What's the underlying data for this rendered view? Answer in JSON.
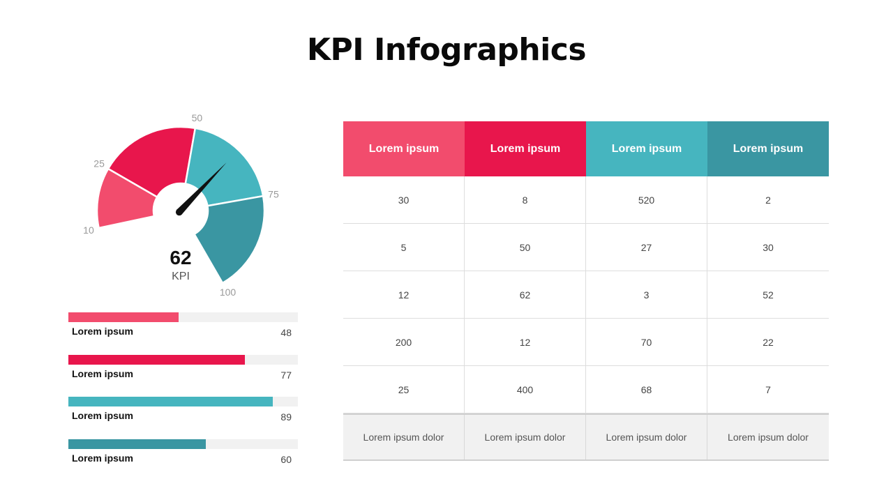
{
  "title": "KPI Infographics",
  "colors": {
    "pink": "#F24C6D",
    "red": "#E8164C",
    "teal": "#46B5BF",
    "dark_teal": "#3A96A2",
    "track": "#F1F1F1",
    "needle": "#111111",
    "scale_text": "#999999"
  },
  "chart_data": [
    {
      "type": "gauge",
      "value": 62,
      "value_label": "62",
      "caption": "KPI",
      "scale_min": 0,
      "scale_max": 100,
      "scale_labels": [
        "10",
        "25",
        "50",
        "75",
        "100"
      ],
      "segments": [
        {
          "from": 10,
          "to": 25,
          "color": "#F24C6D"
        },
        {
          "from": 25,
          "to": 50,
          "color": "#E8164C"
        },
        {
          "from": 50,
          "to": 75,
          "color": "#46B5BF"
        },
        {
          "from": 75,
          "to": 100,
          "color": "#3A96A2"
        }
      ]
    },
    {
      "type": "bar",
      "orientation": "horizontal",
      "max": 100,
      "items": [
        {
          "label": "Lorem ipsum",
          "value": 48,
          "value_text": "48",
          "color": "#F24C6D"
        },
        {
          "label": "Lorem ipsum",
          "value": 77,
          "value_text": "77",
          "color": "#E8164C"
        },
        {
          "label": "Lorem ipsum",
          "value": 89,
          "value_text": "89",
          "color": "#46B5BF"
        },
        {
          "label": "Lorem ipsum",
          "value": 60,
          "value_text": "60",
          "color": "#3A96A2"
        }
      ]
    },
    {
      "type": "table",
      "headers": [
        {
          "label": "Lorem ipsum",
          "color": "#F24C6D"
        },
        {
          "label": "Lorem ipsum",
          "color": "#E8164C"
        },
        {
          "label": "Lorem ipsum",
          "color": "#46B5BF"
        },
        {
          "label": "Lorem ipsum",
          "color": "#3A96A2"
        }
      ],
      "rows": [
        [
          "30",
          "8",
          "520",
          "2"
        ],
        [
          "5",
          "50",
          "27",
          "30"
        ],
        [
          "12",
          "62",
          "3",
          "52"
        ],
        [
          "200",
          "12",
          "70",
          "22"
        ],
        [
          "25",
          "400",
          "68",
          "7"
        ]
      ],
      "footer": [
        "Lorem ipsum dolor",
        "Lorem ipsum dolor",
        "Lorem ipsum dolor",
        "Lorem ipsum dolor"
      ]
    }
  ]
}
